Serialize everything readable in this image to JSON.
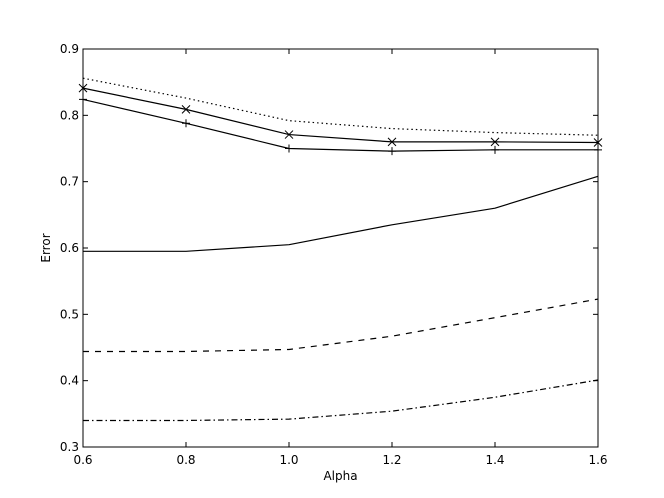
{
  "chart_data": {
    "type": "line",
    "xlabel": "Alpha",
    "ylabel": "Error",
    "xlim": [
      0.6,
      1.6
    ],
    "ylim": [
      0.3,
      0.9
    ],
    "grid": false,
    "x": [
      0.6,
      0.8,
      1.0,
      1.2,
      1.4,
      1.6
    ],
    "xticks": [
      "0.6",
      "0.8",
      "1.0",
      "1.2",
      "1.4",
      "1.6"
    ],
    "yticks": [
      "0.3",
      "0.4",
      "0.5",
      "0.6",
      "0.7",
      "0.8",
      "0.9"
    ],
    "series": [
      {
        "style": "dotted",
        "marker": "none",
        "values": [
          0.856,
          0.826,
          0.792,
          0.78,
          0.774,
          0.77
        ]
      },
      {
        "style": "solid",
        "marker": "x",
        "values": [
          0.841,
          0.809,
          0.771,
          0.76,
          0.76,
          0.759
        ]
      },
      {
        "style": "solid",
        "marker": "plus",
        "values": [
          0.824,
          0.788,
          0.75,
          0.746,
          0.748,
          0.748
        ]
      },
      {
        "style": "solid",
        "marker": "none",
        "values": [
          0.595,
          0.595,
          0.605,
          0.635,
          0.66,
          0.708
        ]
      },
      {
        "style": "dashed",
        "marker": "none",
        "values": [
          0.444,
          0.444,
          0.447,
          0.467,
          0.495,
          0.523
        ]
      },
      {
        "style": "dashdot",
        "marker": "none",
        "values": [
          0.34,
          0.34,
          0.342,
          0.354,
          0.375,
          0.401
        ]
      }
    ]
  }
}
